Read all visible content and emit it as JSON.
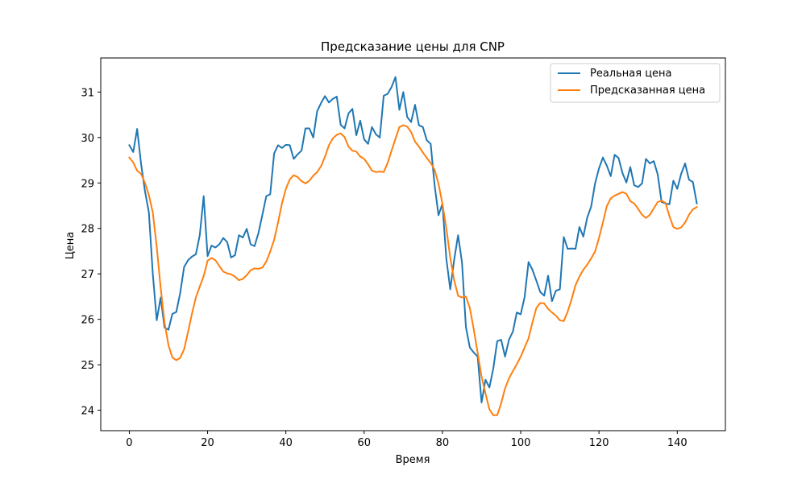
{
  "chart_data": {
    "type": "line",
    "title": "Предсказание цены для CNP",
    "xlabel": "Время",
    "ylabel": "Цена",
    "xlim": [
      -7.3,
      152.3
    ],
    "ylim": [
      23.55,
      31.75
    ],
    "xticks": [
      0,
      20,
      40,
      60,
      80,
      100,
      120,
      140
    ],
    "yticks": [
      24,
      25,
      26,
      27,
      28,
      29,
      30,
      31
    ],
    "grid": false,
    "legend_position": "top-right",
    "series": [
      {
        "name": "Реальная цена",
        "color": "#1f77b4",
        "values": [
          29.83,
          29.68,
          30.19,
          29.42,
          28.82,
          28.35,
          27.0,
          25.98,
          26.48,
          25.82,
          25.77,
          26.12,
          26.16,
          26.58,
          27.15,
          27.3,
          27.38,
          27.43,
          27.85,
          28.71,
          27.39,
          27.62,
          27.58,
          27.65,
          27.79,
          27.7,
          27.36,
          27.41,
          27.85,
          27.8,
          27.99,
          27.65,
          27.61,
          27.9,
          28.3,
          28.71,
          28.75,
          29.65,
          29.83,
          29.77,
          29.84,
          29.83,
          29.53,
          29.63,
          29.71,
          30.2,
          30.2,
          30.0,
          30.58,
          30.76,
          30.91,
          30.77,
          30.85,
          30.9,
          30.28,
          30.2,
          30.53,
          30.63,
          30.05,
          30.37,
          29.96,
          29.86,
          30.23,
          30.07,
          30.0,
          30.92,
          30.96,
          31.11,
          31.33,
          30.61,
          31.0,
          30.45,
          30.34,
          30.72,
          30.27,
          30.23,
          29.94,
          29.86,
          28.95,
          28.29,
          28.54,
          27.33,
          26.66,
          27.31,
          27.85,
          27.25,
          25.83,
          25.38,
          25.27,
          25.18,
          24.17,
          24.67,
          24.5,
          24.92,
          25.52,
          25.55,
          25.18,
          25.55,
          25.73,
          26.15,
          26.11,
          26.49,
          27.26,
          27.09,
          26.85,
          26.6,
          26.52,
          26.96,
          26.4,
          26.63,
          26.66,
          27.81,
          27.55,
          27.56,
          27.55,
          28.03,
          27.82,
          28.24,
          28.48,
          28.99,
          29.32,
          29.56,
          29.38,
          29.15,
          29.62,
          29.55,
          29.22,
          29.01,
          29.35,
          28.95,
          28.91,
          28.99,
          29.53,
          29.43,
          29.48,
          29.19,
          28.58,
          28.55,
          28.53,
          29.05,
          28.87,
          29.2,
          29.43,
          29.07,
          29.02,
          28.55
        ]
      },
      {
        "name": "Предсказанная цена",
        "color": "#ff7f0e",
        "values": [
          29.56,
          29.45,
          29.27,
          29.2,
          29.0,
          28.73,
          28.35,
          27.6,
          26.7,
          25.93,
          25.43,
          25.16,
          25.1,
          25.15,
          25.34,
          25.72,
          26.12,
          26.48,
          26.72,
          26.95,
          27.29,
          27.35,
          27.3,
          27.17,
          27.05,
          27.01,
          26.99,
          26.94,
          26.86,
          26.89,
          26.97,
          27.08,
          27.12,
          27.11,
          27.14,
          27.27,
          27.49,
          27.75,
          28.13,
          28.55,
          28.87,
          29.08,
          29.17,
          29.13,
          29.04,
          28.99,
          29.05,
          29.16,
          29.24,
          29.37,
          29.58,
          29.83,
          29.98,
          30.06,
          30.09,
          30.01,
          29.8,
          29.71,
          29.69,
          29.58,
          29.53,
          29.41,
          29.27,
          29.24,
          29.25,
          29.24,
          29.44,
          29.71,
          29.97,
          30.23,
          30.27,
          30.24,
          30.12,
          29.91,
          29.8,
          29.67,
          29.55,
          29.44,
          29.29,
          28.98,
          28.54,
          28.0,
          27.36,
          26.86,
          26.52,
          26.48,
          26.5,
          26.25,
          25.78,
          25.26,
          24.74,
          24.37,
          24.02,
          23.89,
          23.89,
          24.15,
          24.48,
          24.7,
          24.86,
          25.01,
          25.18,
          25.38,
          25.58,
          25.93,
          26.25,
          26.36,
          26.35,
          26.23,
          26.15,
          26.08,
          25.98,
          25.96,
          26.17,
          26.44,
          26.75,
          26.94,
          27.09,
          27.2,
          27.34,
          27.49,
          27.79,
          28.13,
          28.49,
          28.66,
          28.72,
          28.76,
          28.8,
          28.76,
          28.6,
          28.55,
          28.43,
          28.3,
          28.23,
          28.3,
          28.44,
          28.58,
          28.61,
          28.56,
          28.27,
          28.03,
          27.99,
          28.02,
          28.13,
          28.3,
          28.42,
          28.47
        ]
      }
    ]
  }
}
